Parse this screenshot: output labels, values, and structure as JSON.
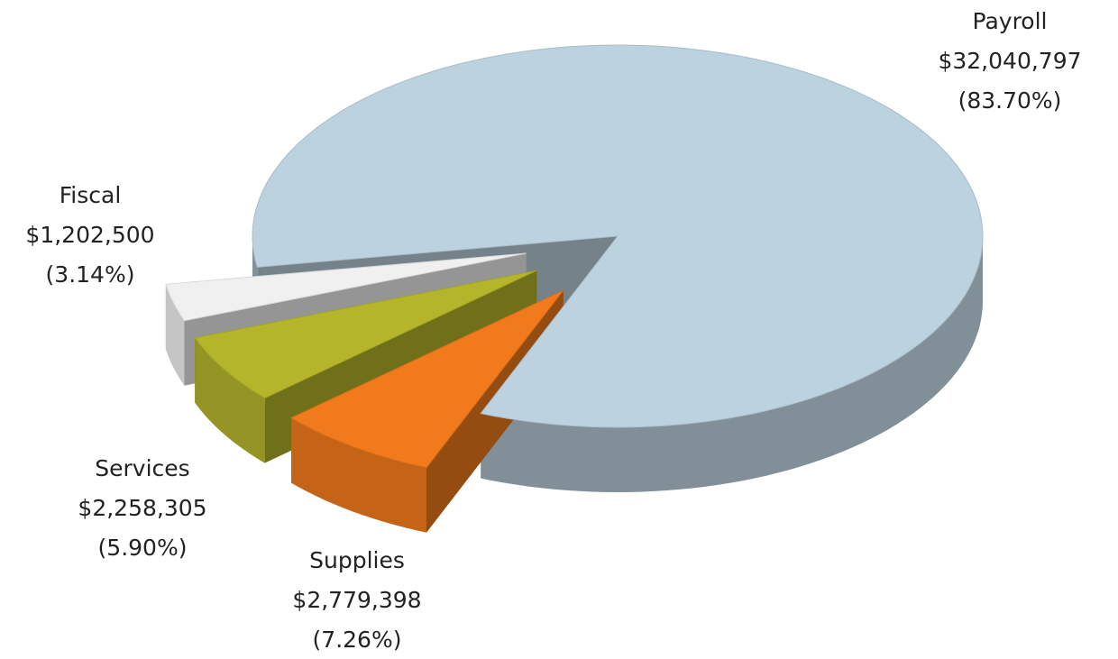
{
  "chart_data": {
    "type": "pie",
    "three_d": true,
    "categories": [
      "Payroll",
      "Fiscal",
      "Services",
      "Supplies"
    ],
    "values": [
      32040797,
      1202500,
      2258305,
      2779398
    ],
    "value_labels": [
      "$32,040,797",
      "$1,202,500",
      "$2,258,305",
      "$2,779,398"
    ],
    "percents": [
      83.7,
      3.14,
      5.9,
      7.26
    ],
    "percent_labels": [
      "(83.70%)",
      "(3.14%)",
      "(5.90%)",
      "(7.26%)"
    ],
    "colors": [
      "#bcd2df",
      "#f0f0f0",
      "#b5b52c",
      "#f07a1c"
    ]
  }
}
